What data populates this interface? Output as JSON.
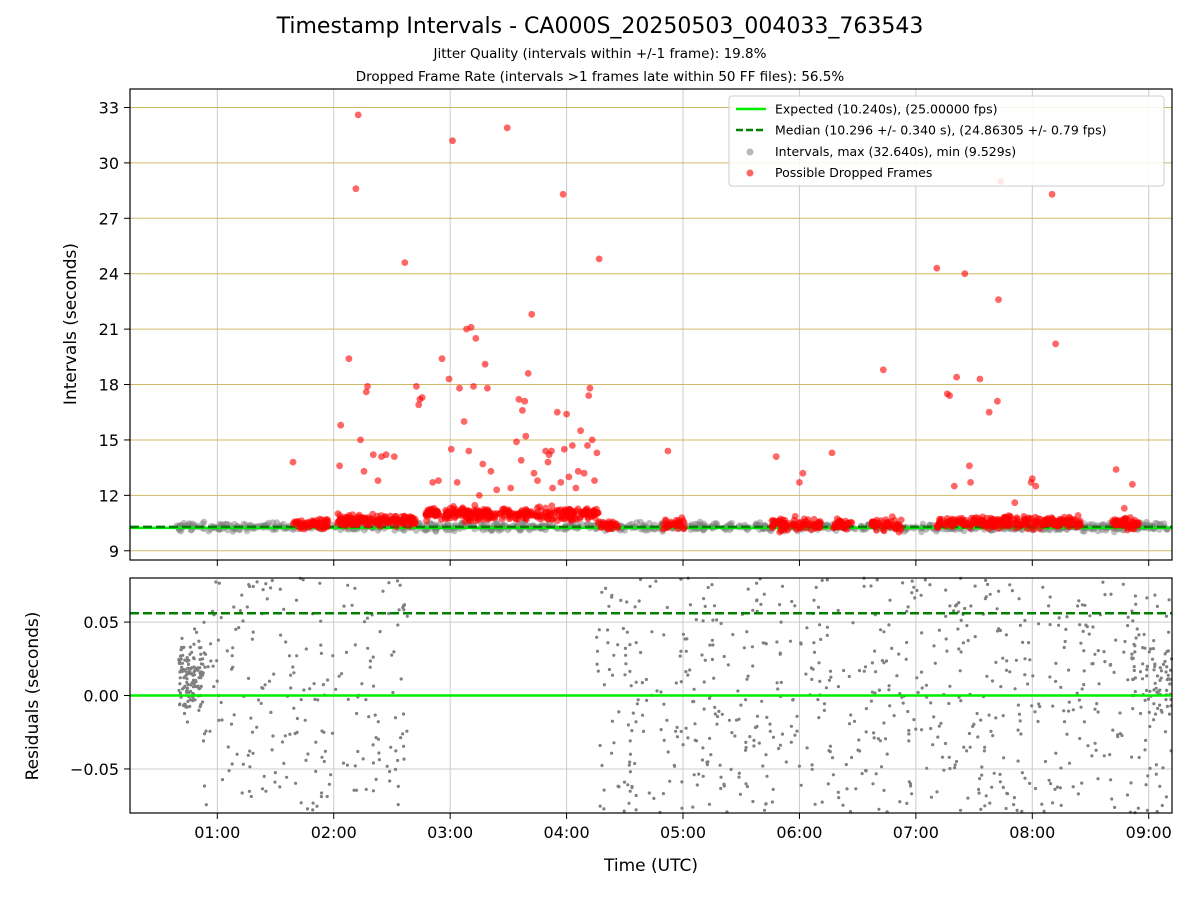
{
  "title": "Timestamp Intervals - CA000S_20250503_004033_763543",
  "subtitle_1": "Jitter Quality (intervals within +/-1 frame): 19.8%",
  "subtitle_2": "Dropped Frame Rate (intervals >1 frames late within 50 FF files): 56.5%",
  "colors": {
    "expected": "#00ee00",
    "median": "#008000",
    "intervals": "#808080",
    "dropped": "#ff0000",
    "hgrid": "#d2b866",
    "vgrid": "#cccccc"
  },
  "chart_data": [
    {
      "type": "scatter",
      "name": "intervals-panel",
      "ylabel": "Intervals (seconds)",
      "xlabel": "",
      "xlim_hours": [
        0.25,
        9.2
      ],
      "ylim": [
        8.5,
        34
      ],
      "yticks": [
        9,
        12,
        15,
        18,
        21,
        24,
        27,
        30,
        33
      ],
      "legend_position": "top-right",
      "legend": {
        "expected": "Expected (10.240s), (25.00000 fps)",
        "median": "Median (10.296 +/- 0.340 s), (24.86305 +/- 0.79 fps)",
        "intervals": "Intervals, max (32.640s), min (9.529s)",
        "dropped": "Possible Dropped Frames"
      },
      "expected_interval": 10.24,
      "median_interval": 10.296,
      "max_interval": 32.64,
      "min_interval": 9.529,
      "dropped_points": [
        [
          1.65,
          13.8
        ],
        [
          2.05,
          13.6
        ],
        [
          2.06,
          15.8
        ],
        [
          2.13,
          19.4
        ],
        [
          2.21,
          32.6
        ],
        [
          2.19,
          28.6
        ],
        [
          2.23,
          15.0
        ],
        [
          2.26,
          13.3
        ],
        [
          2.28,
          17.6
        ],
        [
          2.29,
          17.9
        ],
        [
          2.34,
          14.2
        ],
        [
          2.38,
          12.8
        ],
        [
          2.41,
          14.1
        ],
        [
          2.45,
          14.2
        ],
        [
          2.52,
          14.1
        ],
        [
          2.61,
          24.6
        ],
        [
          2.71,
          17.9
        ],
        [
          2.73,
          16.9
        ],
        [
          2.74,
          17.2
        ],
        [
          2.76,
          17.3
        ],
        [
          2.85,
          12.7
        ],
        [
          2.9,
          12.8
        ],
        [
          2.93,
          19.4
        ],
        [
          2.99,
          18.3
        ],
        [
          3.01,
          14.5
        ],
        [
          3.02,
          31.2
        ],
        [
          3.06,
          12.7
        ],
        [
          3.08,
          17.8
        ],
        [
          3.12,
          16.0
        ],
        [
          3.14,
          21.0
        ],
        [
          3.16,
          14.4
        ],
        [
          3.18,
          21.1
        ],
        [
          3.2,
          17.9
        ],
        [
          3.22,
          20.5
        ],
        [
          3.25,
          12.0
        ],
        [
          3.28,
          13.7
        ],
        [
          3.3,
          19.1
        ],
        [
          3.32,
          17.8
        ],
        [
          3.35,
          13.3
        ],
        [
          3.4,
          12.3
        ],
        [
          3.49,
          31.9
        ],
        [
          3.52,
          12.4
        ],
        [
          3.57,
          14.9
        ],
        [
          3.59,
          17.2
        ],
        [
          3.61,
          13.9
        ],
        [
          3.62,
          16.6
        ],
        [
          3.64,
          17.1
        ],
        [
          3.65,
          15.2
        ],
        [
          3.67,
          18.6
        ],
        [
          3.7,
          21.8
        ],
        [
          3.72,
          13.2
        ],
        [
          3.75,
          12.8
        ],
        [
          3.82,
          14.4
        ],
        [
          3.84,
          13.8
        ],
        [
          3.85,
          14.2
        ],
        [
          3.87,
          14.4
        ],
        [
          3.88,
          12.4
        ],
        [
          3.92,
          16.5
        ],
        [
          3.95,
          12.7
        ],
        [
          3.97,
          28.3
        ],
        [
          3.98,
          14.5
        ],
        [
          4.0,
          16.4
        ],
        [
          4.02,
          13.0
        ],
        [
          4.05,
          14.7
        ],
        [
          4.08,
          12.4
        ],
        [
          4.1,
          13.3
        ],
        [
          4.12,
          15.5
        ],
        [
          4.15,
          13.2
        ],
        [
          4.18,
          14.7
        ],
        [
          4.19,
          17.4
        ],
        [
          4.2,
          17.8
        ],
        [
          4.22,
          15.0
        ],
        [
          4.24,
          12.8
        ],
        [
          4.26,
          14.3
        ],
        [
          4.28,
          24.8
        ],
        [
          4.87,
          14.4
        ],
        [
          5.8,
          14.1
        ],
        [
          6.0,
          12.7
        ],
        [
          6.03,
          13.2
        ],
        [
          6.28,
          14.3
        ],
        [
          6.72,
          18.8
        ],
        [
          7.18,
          24.3
        ],
        [
          7.27,
          17.5
        ],
        [
          7.29,
          17.4
        ],
        [
          7.33,
          12.5
        ],
        [
          7.35,
          18.4
        ],
        [
          7.42,
          24.0
        ],
        [
          7.46,
          13.6
        ],
        [
          7.47,
          12.7
        ],
        [
          7.55,
          18.3
        ],
        [
          7.63,
          16.5
        ],
        [
          7.7,
          17.1
        ],
        [
          7.71,
          22.6
        ],
        [
          7.73,
          29.0
        ],
        [
          7.85,
          11.6
        ],
        [
          7.99,
          12.7
        ],
        [
          8.0,
          12.9
        ],
        [
          8.03,
          12.5
        ],
        [
          8.17,
          28.3
        ],
        [
          8.2,
          20.2
        ],
        [
          8.72,
          13.4
        ],
        [
          8.79,
          11.3
        ],
        [
          8.86,
          12.6
        ]
      ]
    },
    {
      "type": "scatter",
      "name": "residuals-panel",
      "ylabel": "Residuals (seconds)",
      "xlabel": "Time (UTC)",
      "xlim_hours": [
        0.25,
        9.2
      ],
      "ylim": [
        -0.08,
        0.08
      ],
      "yticks": [
        -0.05,
        0.0,
        0.05
      ],
      "ytick_labels": [
        "−0.05",
        "0.00",
        "0.05"
      ],
      "xtick_hours": [
        1,
        2,
        3,
        4,
        5,
        6,
        7,
        8,
        9
      ],
      "xtick_labels": [
        "01:00",
        "02:00",
        "03:00",
        "04:00",
        "05:00",
        "06:00",
        "07:00",
        "08:00",
        "09:00"
      ],
      "expected_residual": 0.0,
      "median_residual": 0.056
    }
  ]
}
